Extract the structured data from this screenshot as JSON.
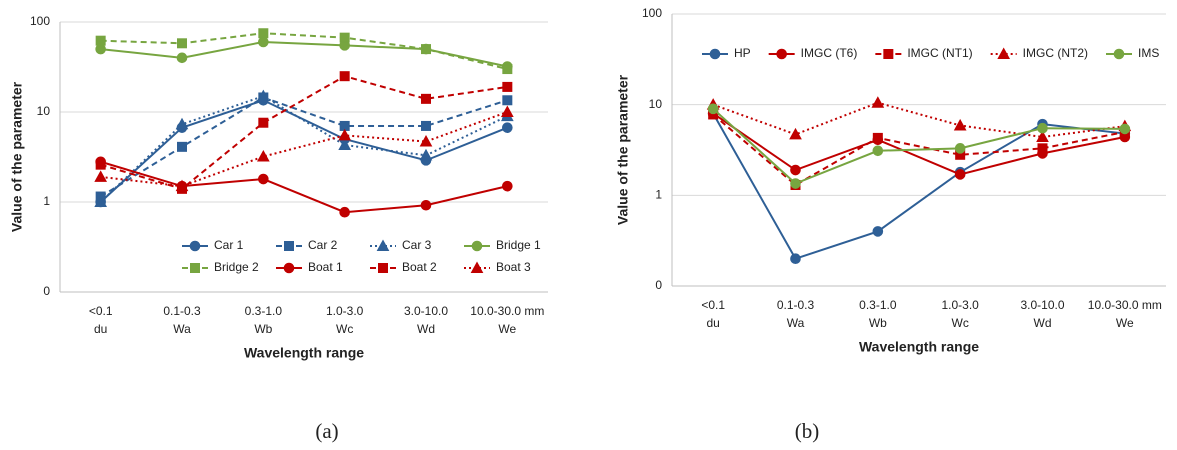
{
  "chart_data": [
    {
      "type": "line",
      "caption": "(a)",
      "y_label": "Value of the parameter",
      "x_label": "Wavelength range",
      "log_scale": true,
      "grid": true,
      "legend": "lower right",
      "categories": [
        "<0.1",
        "0.1-0.3",
        "0.3-1.0",
        "1.0-3.0",
        "3.0-10.0",
        "10.0-30.0 mm"
      ],
      "category_codes": [
        "du",
        "Wa",
        "Wb",
        "Wc",
        "Wd",
        "We"
      ],
      "ylim": [
        0.1,
        100
      ],
      "yticks": [
        {
          "value": 0.1,
          "label": "0"
        },
        1,
        10,
        100
      ],
      "series": [
        {
          "name": "Car 1",
          "color": "#2e5f96",
          "dash": "solid",
          "marker": "circle",
          "values": [
            1.0,
            6.7,
            13.5,
            5.0,
            2.9,
            6.7
          ]
        },
        {
          "name": "Car 2",
          "color": "#2e5f96",
          "dash": "dashed",
          "marker": "square",
          "values": [
            1.15,
            4.1,
            14.5,
            7.0,
            7.0,
            13.5
          ]
        },
        {
          "name": "Car 3",
          "color": "#2e5f96",
          "dash": "dotted",
          "marker": "triangle",
          "values": [
            1.0,
            7.3,
            15,
            4.3,
            3.3,
            9
          ]
        },
        {
          "name": "Bridge 1",
          "color": "#77a540",
          "dash": "solid",
          "marker": "circle",
          "values": [
            50,
            40,
            60,
            55,
            50,
            32
          ]
        },
        {
          "name": "Bridge 2",
          "color": "#77a540",
          "dash": "dashed",
          "marker": "square",
          "values": [
            62,
            58,
            75,
            67,
            50,
            30
          ]
        },
        {
          "name": "Boat 1",
          "color": "#c00000",
          "dash": "solid",
          "marker": "circle",
          "values": [
            2.8,
            1.5,
            1.8,
            0.77,
            0.92,
            1.5
          ]
        },
        {
          "name": "Boat 2",
          "color": "#c00000",
          "dash": "dashed",
          "marker": "square",
          "values": [
            2.6,
            1.4,
            7.6,
            25,
            14,
            19
          ]
        },
        {
          "name": "Boat 3",
          "color": "#c00000",
          "dash": "dotted",
          "marker": "triangle",
          "values": [
            1.9,
            1.5,
            3.2,
            5.5,
            4.7,
            10
          ]
        }
      ]
    },
    {
      "type": "line",
      "caption": "(b)",
      "y_label": "Value of the parameter",
      "x_label": "Wavelength range",
      "log_scale": true,
      "grid": true,
      "legend": "top",
      "categories": [
        "<0.1",
        "0.1-0.3",
        "0.3-1.0",
        "1.0-3.0",
        "3.0-10.0",
        "10.0-30.0 mm"
      ],
      "category_codes": [
        "du",
        "Wa",
        "Wb",
        "Wc",
        "Wd",
        "We"
      ],
      "ylim": [
        0.1,
        100
      ],
      "yticks": [
        {
          "value": 0.1,
          "label": "0"
        },
        1,
        10,
        100
      ],
      "series": [
        {
          "name": "HP",
          "color": "#2e5f96",
          "dash": "solid",
          "marker": "circle",
          "values": [
            8,
            0.2,
            0.4,
            1.8,
            6.1,
            4.8
          ]
        },
        {
          "name": "IMGC (T6)",
          "color": "#c00000",
          "dash": "solid",
          "marker": "circle",
          "values": [
            8,
            1.9,
            4.1,
            1.7,
            2.9,
            4.4
          ]
        },
        {
          "name": "IMGC (NT1)",
          "color": "#c00000",
          "dash": "dashed",
          "marker": "square",
          "values": [
            7.8,
            1.3,
            4.3,
            2.8,
            3.3,
            5
          ]
        },
        {
          "name": "IMGC (NT2)",
          "color": "#c00000",
          "dash": "dotted",
          "marker": "triangle",
          "values": [
            10,
            4.7,
            10.5,
            5.9,
            4.4,
            5.8
          ]
        },
        {
          "name": "IMS",
          "color": "#77a540",
          "dash": "solid",
          "marker": "circle",
          "values": [
            9,
            1.35,
            3.1,
            3.3,
            5.5,
            5.4
          ]
        }
      ]
    }
  ]
}
